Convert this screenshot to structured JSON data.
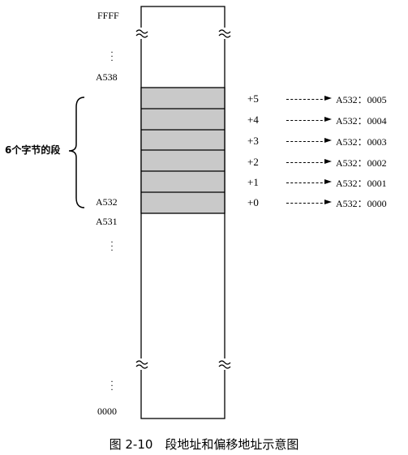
{
  "diagram": {
    "addresses": {
      "top": "FFFF",
      "a538": "A538",
      "a532": "A532",
      "a531": "A531",
      "bottom": "0000"
    },
    "group_label": "6个字节的段",
    "rows": [
      {
        "offset": "+5",
        "target": "A532：0005"
      },
      {
        "offset": "+4",
        "target": "A532：0004"
      },
      {
        "offset": "+3",
        "target": "A532：0003"
      },
      {
        "offset": "+2",
        "target": "A532：0002"
      },
      {
        "offset": "+1",
        "target": "A532：0001"
      },
      {
        "offset": "+0",
        "target": "A532：0000"
      }
    ],
    "dots": "⋮"
  },
  "caption": "图 2-10　段地址和偏移地址示意图",
  "colors": {
    "segment_fill": "#c9c9c9",
    "line": "#000000"
  }
}
